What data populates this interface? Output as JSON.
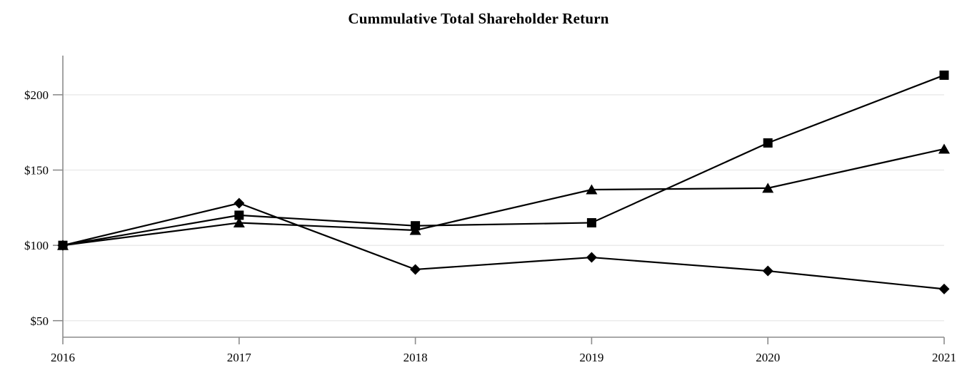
{
  "chart_data": {
    "type": "line",
    "title": "Cummulative Total Shareholder Return",
    "x": [
      2016,
      2017,
      2018,
      2019,
      2020,
      2021
    ],
    "x_tick_labels": [
      "2016",
      "2017",
      "2018",
      "2019",
      "2020",
      "2021"
    ],
    "y_ticks": [
      50,
      100,
      150,
      200
    ],
    "y_tick_labels": [
      "$50",
      "$100",
      "$150",
      "$200"
    ],
    "ylim": [
      39,
      226
    ],
    "xlabel": "",
    "ylabel": "",
    "grid": "horizontal",
    "legend_position": "none",
    "series": [
      {
        "name": "diamond-series",
        "marker": "diamond",
        "values": [
          100,
          128,
          84,
          92,
          83,
          71
        ]
      },
      {
        "name": "triangle-series",
        "marker": "triangle",
        "values": [
          100,
          115,
          110,
          137,
          138,
          164
        ]
      },
      {
        "name": "square-series",
        "marker": "square",
        "values": [
          100,
          120,
          113,
          115,
          168,
          213
        ]
      }
    ],
    "line_color": "#000000",
    "marker_color": "#000000",
    "axis_color": "#8c8c8c",
    "gridline_color": "#ececec",
    "text_color": "#000000",
    "background_color": "#ffffff"
  }
}
